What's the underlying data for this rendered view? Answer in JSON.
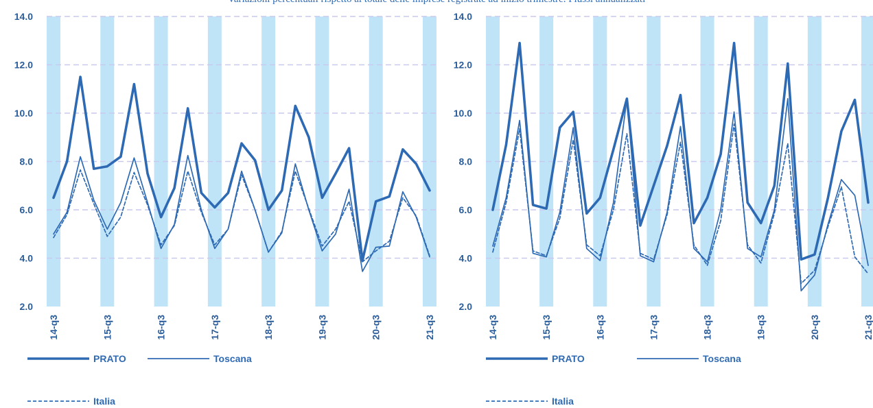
{
  "subtitle": "Variazioni percentuali rispetto al totale delle imprese registrate ad inizio trimestre. Flussi annualizzati",
  "colors": {
    "line": "#2e6ab3",
    "band": "#bfe4f8",
    "grid": "#c9c9ee",
    "tick": "#2b5d9b"
  },
  "chart_data": [
    {
      "type": "line",
      "categories": [
        "14-q3",
        "14-q4",
        "15-q1",
        "15-q2",
        "15-q3",
        "15-q4",
        "16-q1",
        "16-q2",
        "16-q3",
        "16-q4",
        "17-q1",
        "17-q2",
        "17-q3",
        "17-q4",
        "18-q1",
        "18-q2",
        "18-q3",
        "18-q4",
        "19-q1",
        "19-q2",
        "19-q3",
        "19-q4",
        "20-q1",
        "20-q2",
        "20-q3",
        "20-q4",
        "21-q1",
        "21-q2",
        "21-q3"
      ],
      "tick_labels": [
        "14-q3",
        "15-q3",
        "16-q3",
        "17-q3",
        "18-q3",
        "19-q3",
        "20-q3",
        "21-q3"
      ],
      "ylim": [
        2.0,
        14.0
      ],
      "yticks": [
        "2.0",
        "4.0",
        "6.0",
        "8.0",
        "10.0",
        "12.0",
        "14.0"
      ],
      "grid": true,
      "legend": "bottom",
      "series": [
        {
          "name": "PRATO",
          "style": "thick",
          "values": [
            6.5,
            8.0,
            11.5,
            7.7,
            7.8,
            8.2,
            11.2,
            7.5,
            5.7,
            6.9,
            10.2,
            6.7,
            6.1,
            6.7,
            8.75,
            8.05,
            6.0,
            6.8,
            10.3,
            9.0,
            6.5,
            7.5,
            8.55,
            3.9,
            6.35,
            6.55,
            8.5,
            7.9,
            6.8
          ]
        },
        {
          "name": "Toscana",
          "style": "thin",
          "values": [
            5.0,
            5.9,
            8.2,
            6.4,
            5.2,
            6.3,
            8.15,
            6.3,
            4.4,
            5.4,
            8.25,
            6.0,
            4.4,
            5.2,
            7.6,
            6.0,
            4.25,
            5.05,
            7.9,
            6.0,
            4.3,
            5.0,
            6.85,
            3.45,
            4.45,
            4.5,
            6.75,
            5.7,
            4.05
          ]
        },
        {
          "name": "Italia",
          "style": "dashed",
          "values": [
            4.85,
            5.8,
            7.65,
            6.25,
            4.9,
            5.7,
            7.55,
            6.2,
            4.55,
            5.35,
            7.6,
            5.9,
            4.55,
            5.2,
            7.45,
            6.0,
            4.25,
            5.1,
            7.6,
            6.05,
            4.5,
            5.2,
            6.35,
            3.85,
            4.3,
            4.7,
            6.5,
            5.75,
            4.1
          ]
        }
      ]
    },
    {
      "type": "line",
      "categories": [
        "14-q3",
        "14-q4",
        "15-q1",
        "15-q2",
        "15-q3",
        "15-q4",
        "16-q1",
        "16-q2",
        "16-q3",
        "16-q4",
        "17-q1",
        "17-q2",
        "17-q3",
        "17-q4",
        "18-q1",
        "18-q2",
        "18-q3",
        "18-q4",
        "19-q1",
        "19-q2",
        "19-q3",
        "19-q4",
        "20-q1",
        "20-q2",
        "20-q3",
        "20-q4",
        "21-q1",
        "21-q2",
        "21-q3"
      ],
      "tick_labels": [
        "14-q3",
        "15-q3",
        "16-q3",
        "17-q3",
        "18-q3",
        "19-q3",
        "20-q3",
        "21-q3"
      ],
      "ylim": [
        2.0,
        14.0
      ],
      "yticks": [
        "2.0",
        "4.0",
        "6.0",
        "8.0",
        "10.0",
        "12.0",
        "14.0"
      ],
      "grid": true,
      "legend": "bottom",
      "series": [
        {
          "name": "PRATO",
          "style": "thick",
          "values": [
            6.0,
            8.7,
            12.9,
            6.2,
            6.05,
            9.4,
            10.05,
            5.85,
            6.5,
            8.5,
            10.6,
            5.35,
            7.0,
            8.65,
            10.75,
            5.45,
            6.5,
            8.3,
            12.9,
            6.3,
            5.45,
            7.0,
            12.05,
            3.95,
            4.15,
            6.5,
            9.25,
            10.55,
            6.3
          ]
        },
        {
          "name": "Toscana",
          "style": "thin",
          "values": [
            4.5,
            6.5,
            9.7,
            4.2,
            4.05,
            5.9,
            9.4,
            4.4,
            3.9,
            6.3,
            10.6,
            4.1,
            3.85,
            5.9,
            9.45,
            4.4,
            3.85,
            6.0,
            10.05,
            4.4,
            4.05,
            6.0,
            10.6,
            2.65,
            3.3,
            5.4,
            7.25,
            6.6,
            3.7
          ]
        },
        {
          "name": "Italia",
          "style": "dashed",
          "values": [
            4.25,
            6.3,
            9.35,
            4.3,
            4.1,
            5.65,
            8.9,
            4.55,
            4.1,
            6.0,
            9.15,
            4.2,
            3.95,
            5.8,
            8.8,
            4.55,
            3.7,
            5.55,
            9.55,
            4.55,
            3.8,
            5.85,
            8.75,
            2.95,
            3.5,
            5.3,
            6.95,
            4.05,
            3.35
          ]
        }
      ]
    }
  ]
}
